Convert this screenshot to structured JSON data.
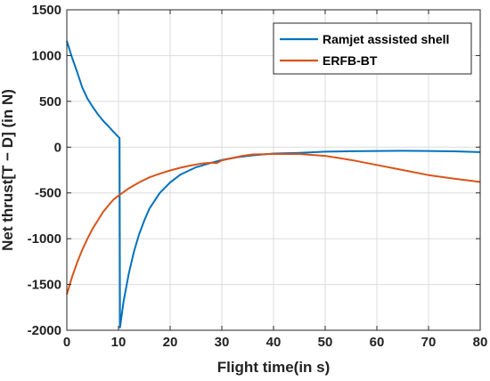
{
  "chart_data": {
    "type": "line",
    "xlabel": "Flight time(in s)",
    "ylabel": "Net thrust[T − D] (in N)",
    "xlim": [
      0,
      80
    ],
    "ylim": [
      -2000,
      1500
    ],
    "xticks": [
      0,
      10,
      20,
      30,
      40,
      50,
      60,
      70,
      80
    ],
    "yticks": [
      -2000,
      -1500,
      -1000,
      -500,
      0,
      500,
      1000,
      1500
    ],
    "xtick_labels": [
      "0",
      "10",
      "20",
      "30",
      "40",
      "50",
      "60",
      "70",
      "80"
    ],
    "ytick_labels": [
      "-2000",
      "-1500",
      "-1000",
      "-500",
      "0",
      "500",
      "1000",
      "1500"
    ],
    "grid": true,
    "legend_position": "top-right",
    "series": [
      {
        "name": "Ramjet assisted shell",
        "color": "#0072BD",
        "x": [
          0,
          1,
          2,
          3,
          4,
          5,
          6,
          7,
          8,
          9,
          10,
          10.2,
          10.3,
          11,
          12,
          13,
          14,
          15,
          16,
          18,
          20,
          22,
          25,
          28,
          30,
          33,
          36,
          40,
          45,
          50,
          55,
          60,
          65,
          70,
          75,
          80
        ],
        "y": [
          1160,
          980,
          820,
          650,
          530,
          440,
          360,
          290,
          230,
          170,
          110,
          100,
          -1970,
          -1680,
          -1380,
          -1140,
          -950,
          -800,
          -670,
          -500,
          -385,
          -300,
          -220,
          -170,
          -140,
          -110,
          -90,
          -70,
          -62,
          -50,
          -45,
          -42,
          -40,
          -42,
          -46,
          -55
        ]
      },
      {
        "name": "ERFB-BT",
        "color": "#D95319",
        "x": [
          0,
          1,
          2,
          3,
          4,
          5,
          6,
          7,
          8,
          9,
          10,
          12,
          14,
          16,
          18,
          20,
          22,
          24,
          26,
          28,
          29,
          30,
          32,
          34,
          36,
          40,
          45,
          50,
          55,
          60,
          65,
          70,
          75,
          80
        ],
        "y": [
          -1610,
          -1420,
          -1260,
          -1120,
          -1000,
          -890,
          -800,
          -710,
          -640,
          -575,
          -530,
          -450,
          -385,
          -330,
          -290,
          -255,
          -225,
          -200,
          -180,
          -170,
          -175,
          -145,
          -120,
          -95,
          -80,
          -75,
          -75,
          -95,
          -140,
          -195,
          -250,
          -305,
          -345,
          -380
        ]
      }
    ]
  }
}
